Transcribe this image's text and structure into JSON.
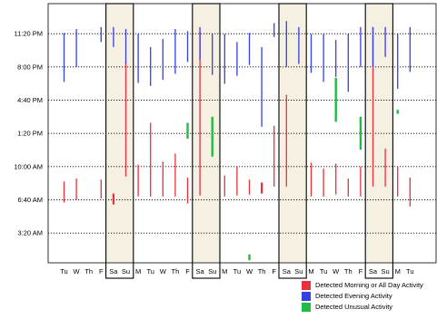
{
  "chart_data": {
    "type": "bar",
    "y_axis": {
      "tick_labels": [
        "11:20 PM",
        "8:00 PM",
        "4:40 PM",
        "1:20 PM",
        "10:00 AM",
        "6:40 AM",
        "3:20 AM"
      ],
      "tick_hours": [
        23.333,
        20.0,
        16.667,
        13.333,
        10.0,
        6.667,
        3.333
      ],
      "range_hours": [
        0.35,
        26.35
      ],
      "grid": true,
      "grid_style": "dotted"
    },
    "x_axis": {
      "tick_labels": [
        "Tu",
        "W",
        "Th",
        "F",
        "Sa",
        "Su",
        "M",
        "Tu",
        "W",
        "Th",
        "F",
        "Sa",
        "Su",
        "M",
        "Tu",
        "W",
        "Th",
        "F",
        "Sa",
        "Su",
        "M",
        "Tu",
        "W",
        "Th",
        "F",
        "Sa",
        "Su",
        "M",
        "Tu"
      ]
    },
    "weekend_highlight": [
      [
        4,
        5
      ],
      [
        11,
        12
      ],
      [
        18,
        19
      ],
      [
        25,
        26
      ]
    ],
    "series": [
      {
        "name": "Detected Morning or All Day Activity",
        "color": "#e8313a",
        "bars": [
          {
            "day": 0,
            "start": 6.4,
            "end": 8.5
          },
          {
            "day": 1,
            "start": 6.7,
            "end": 8.8
          },
          {
            "day": 3,
            "start": 6.8,
            "end": 8.7
          },
          {
            "day": 4,
            "start": 6.2,
            "end": 7.3
          },
          {
            "day": 5,
            "start": 9.0,
            "end": 20.5
          },
          {
            "day": 6,
            "start": 7.0,
            "end": 10.2
          },
          {
            "day": 7,
            "start": 7.0,
            "end": 14.4
          },
          {
            "day": 8,
            "start": 7.0,
            "end": 10.5
          },
          {
            "day": 9,
            "start": 7.0,
            "end": 11.3
          },
          {
            "day": 10,
            "start": 6.3,
            "end": 8.9
          },
          {
            "day": 11,
            "start": 7.1,
            "end": 23.5
          },
          {
            "day": 13,
            "start": 7.0,
            "end": 9.1
          },
          {
            "day": 14,
            "start": 7.1,
            "end": 10.0
          },
          {
            "day": 15,
            "start": 7.2,
            "end": 8.7
          },
          {
            "day": 16,
            "start": 7.3,
            "end": 8.4
          },
          {
            "day": 17,
            "start": 8.0,
            "end": 14.1
          },
          {
            "day": 18,
            "start": 8.0,
            "end": 17.2
          },
          {
            "day": 20,
            "start": 7.0,
            "end": 10.4
          },
          {
            "day": 21,
            "start": 7.0,
            "end": 9.8
          },
          {
            "day": 22,
            "start": 7.2,
            "end": 10.3
          },
          {
            "day": 23,
            "start": 7.0,
            "end": 8.8
          },
          {
            "day": 24,
            "start": 7.0,
            "end": 10.0
          },
          {
            "day": 25,
            "start": 8.0,
            "end": 24.0
          },
          {
            "day": 26,
            "start": 8.0,
            "end": 11.8
          },
          {
            "day": 27,
            "start": 7.0,
            "end": 10.0
          },
          {
            "day": 28,
            "start": 6.0,
            "end": 8.9
          }
        ]
      },
      {
        "name": "Detected Evening Activity",
        "color": "#3440e0",
        "bars": [
          {
            "day": 0,
            "start": 18.5,
            "end": 23.4
          },
          {
            "day": 1,
            "start": 20.0,
            "end": 23.8
          },
          {
            "day": 3,
            "start": 22.5,
            "end": 24.0
          },
          {
            "day": 4,
            "start": 22.0,
            "end": 24.0
          },
          {
            "day": 5,
            "start": 20.3,
            "end": 23.8
          },
          {
            "day": 6,
            "start": 18.4,
            "end": 23.3
          },
          {
            "day": 7,
            "start": 18.1,
            "end": 22.0
          },
          {
            "day": 8,
            "start": 18.7,
            "end": 22.8
          },
          {
            "day": 9,
            "start": 19.3,
            "end": 23.8
          },
          {
            "day": 10,
            "start": 20.5,
            "end": 23.6
          },
          {
            "day": 11,
            "start": 20.7,
            "end": 24.0
          },
          {
            "day": 12,
            "start": 19.2,
            "end": 23.3
          },
          {
            "day": 13,
            "start": 18.3,
            "end": 23.3
          },
          {
            "day": 14,
            "start": 19.1,
            "end": 22.5
          },
          {
            "day": 15,
            "start": 20.2,
            "end": 23.4
          },
          {
            "day": 16,
            "start": 14.0,
            "end": 22.0
          },
          {
            "day": 17,
            "start": 23.0,
            "end": 24.4
          },
          {
            "day": 18,
            "start": 20.0,
            "end": 24.6
          },
          {
            "day": 19,
            "start": 20.3,
            "end": 24.0
          },
          {
            "day": 20,
            "start": 19.4,
            "end": 23.3
          },
          {
            "day": 21,
            "start": 18.5,
            "end": 23.3
          },
          {
            "day": 22,
            "start": 19.0,
            "end": 22.7
          },
          {
            "day": 23,
            "start": 17.5,
            "end": 23.3
          },
          {
            "day": 24,
            "start": 20.0,
            "end": 24.0
          },
          {
            "day": 25,
            "start": 20.0,
            "end": 24.0
          },
          {
            "day": 26,
            "start": 21.0,
            "end": 24.0
          },
          {
            "day": 27,
            "start": 17.8,
            "end": 23.3
          },
          {
            "day": 28,
            "start": 19.5,
            "end": 24.0
          }
        ]
      },
      {
        "name": "Detected Unusual Activity",
        "color": "#22bb44",
        "bars": [
          {
            "day": 10,
            "start": 12.8,
            "end": 14.4
          },
          {
            "day": 12,
            "start": 11.0,
            "end": 15.0
          },
          {
            "day": 15,
            "start": 0.6,
            "end": 1.2
          },
          {
            "day": 22,
            "start": 14.5,
            "end": 18.9
          },
          {
            "day": 24,
            "start": 11.7,
            "end": 15.0
          },
          {
            "day": 27,
            "start": 15.3,
            "end": 15.7
          }
        ]
      }
    ]
  }
}
